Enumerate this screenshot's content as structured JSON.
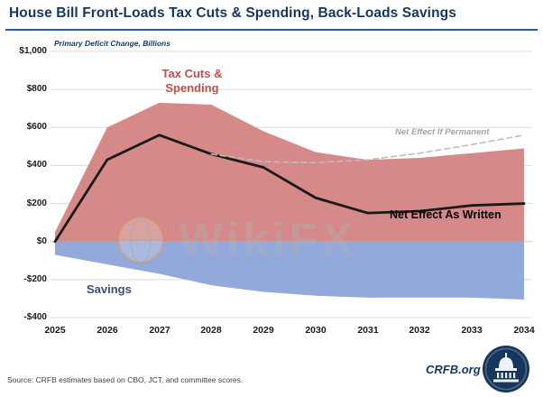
{
  "header": {
    "title": "House Bill Front-Loads Tax Cuts & Spending, Back-Loads Savings"
  },
  "watermark": {
    "text": "WikiFX"
  },
  "footer": {
    "source": "Source: CRFB estimates based on CBO, JCT, and committee scores.",
    "brand": "CRFB.org"
  },
  "chart_data": {
    "type": "area",
    "title": "House Bill Front-Loads Tax Cuts & Spending, Back-Loads Savings",
    "axis_note": "Primary Deficit Change, Billions",
    "categories": [
      "2025",
      "2026",
      "2027",
      "2028",
      "2029",
      "2030",
      "2031",
      "2032",
      "2033",
      "2034"
    ],
    "ylim": [
      -400,
      1000
    ],
    "ytick_step": 200,
    "ytick_labels": [
      "$1,000",
      "$800",
      "$600",
      "$400",
      "$200",
      "$0",
      "-$200",
      "-$400"
    ],
    "grid": true,
    "legend_position": "inline-annotations",
    "series": [
      {
        "name": "Tax Cuts & Spending",
        "type": "area",
        "color": "#d58989",
        "values": [
          50,
          600,
          730,
          720,
          580,
          470,
          430,
          440,
          465,
          490
        ]
      },
      {
        "name": "Savings",
        "type": "area",
        "color": "#93a9dc",
        "values": [
          -70,
          -120,
          -170,
          -230,
          -265,
          -285,
          -295,
          -295,
          -295,
          -305
        ]
      },
      {
        "name": "Net Effect As Written",
        "type": "line",
        "color": "#1a1a1a",
        "width": 2.8,
        "values": [
          0,
          430,
          560,
          460,
          390,
          230,
          150,
          160,
          190,
          200
        ]
      },
      {
        "name": "Net Effect If Permanent",
        "type": "line",
        "dashed": true,
        "color": "#bdbdbd",
        "width": 1.6,
        "values": [
          null,
          null,
          null,
          460,
          420,
          415,
          430,
          465,
          510,
          560
        ]
      }
    ]
  }
}
